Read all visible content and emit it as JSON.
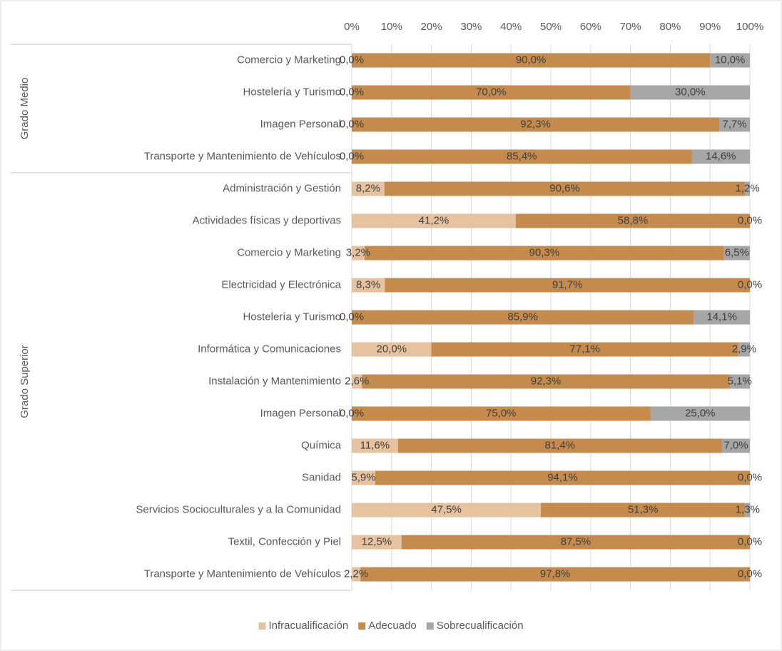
{
  "chart_data": {
    "type": "stacked-bar-horizontal",
    "groups": [
      {
        "name": "Grado Medio",
        "categories": [
          "Comercio y Marketing",
          "Hostelería y Turismo",
          "Imagen Personal",
          "Transporte y Mantenimiento de Vehículos"
        ]
      },
      {
        "name": "Grado Superior",
        "categories": [
          "Administración y Gestión",
          "Actividades físicas y deportivas",
          "Comercio y Marketing",
          "Electricidad y Electrónica",
          "Hostelería y Turismo",
          "Informática y Comunicaciones",
          "Instalación y Mantenimiento",
          "Imagen Personal",
          "Química",
          "Sanidad",
          "Servicios Socioculturales y a la Comunidad",
          "Textil, Confección y Piel",
          "Transporte y Mantenimiento de Vehículos"
        ]
      }
    ],
    "series": [
      {
        "name": "Infracualificación",
        "color": "#e6c29f",
        "values": [
          0,
          0,
          0,
          0,
          8.2,
          41.2,
          3.2,
          8.3,
          0,
          20,
          2.6,
          0,
          11.6,
          5.9,
          47.5,
          12.5,
          2.2
        ],
        "value_labels": [
          "0,0%",
          "0,0%",
          "0,0%",
          "0,0%",
          "8,2%",
          "41,2%",
          "3,2%",
          "8,3%",
          "0,0%",
          "20,0%",
          "2,6%",
          "0,0%",
          "11,6%",
          "5,9%",
          "47,5%",
          "12,5%",
          "2,2%"
        ]
      },
      {
        "name": "Adecuado",
        "color": "#c48b4c",
        "values": [
          90,
          70,
          92.3,
          85.4,
          90.6,
          58.8,
          90.3,
          91.7,
          85.9,
          77.1,
          92.3,
          75,
          81.4,
          94.1,
          51.3,
          87.5,
          97.8
        ],
        "value_labels": [
          "90,0%",
          "70,0%",
          "92,3%",
          "85,4%",
          "90,6%",
          "58,8%",
          "90,3%",
          "91,7%",
          "85,9%",
          "77,1%",
          "92,3%",
          "75,0%",
          "81,4%",
          "94,1%",
          "51,3%",
          "87,5%",
          "97,8%"
        ]
      },
      {
        "name": "Sobrecualificación",
        "color": "#a6a6a6",
        "values": [
          10,
          30,
          7.7,
          14.6,
          1.2,
          0,
          6.5,
          0,
          14.1,
          2.9,
          5.1,
          25,
          7,
          0,
          1.3,
          0,
          0
        ],
        "value_labels": [
          "10,0%",
          "30,0%",
          "7,7%",
          "14,6%",
          "1,2%",
          "0,0%",
          "6,5%",
          "0,0%",
          "14,1%",
          "2,9%",
          "5,1%",
          "25,0%",
          "7,0%",
          "0,0%",
          "1,3%",
          "0,0%",
          "0,0%"
        ]
      }
    ],
    "xlim": [
      0,
      100
    ],
    "xticks": [
      {
        "value": 0,
        "label": "0%"
      },
      {
        "value": 10,
        "label": "10%"
      },
      {
        "value": 20,
        "label": "20%"
      },
      {
        "value": 30,
        "label": "30%"
      },
      {
        "value": 40,
        "label": "40%"
      },
      {
        "value": 50,
        "label": "50%"
      },
      {
        "value": 60,
        "label": "60%"
      },
      {
        "value": 70,
        "label": "70%"
      },
      {
        "value": 80,
        "label": "80%"
      },
      {
        "value": 90,
        "label": "90%"
      },
      {
        "value": 100,
        "label": "100%"
      }
    ],
    "grid": true,
    "legend": "bottom"
  }
}
